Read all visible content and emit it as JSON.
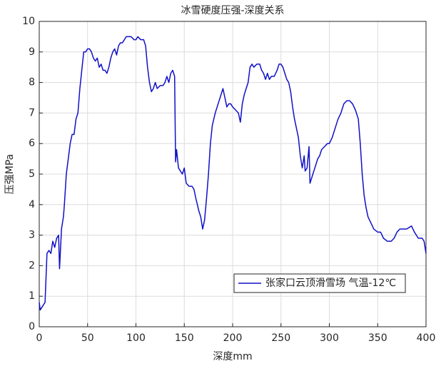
{
  "chart_data": {
    "type": "line",
    "title": "冰雪硬度压强-深度关系",
    "xlabel": "深度mm",
    "ylabel": "压强MPa",
    "x": [
      0,
      1,
      4,
      6,
      8,
      10,
      12,
      14,
      16,
      18,
      20,
      21,
      23,
      25,
      26,
      28,
      30,
      32,
      34,
      36,
      38,
      40,
      42,
      44,
      46,
      48,
      50,
      52,
      54,
      56,
      58,
      60,
      62,
      64,
      66,
      68,
      70,
      72,
      74,
      76,
      78,
      80,
      82,
      84,
      86,
      88,
      90,
      92,
      95,
      98,
      100,
      102,
      105,
      108,
      110,
      112,
      114,
      116,
      118,
      120,
      122,
      125,
      128,
      130,
      132,
      134,
      136,
      138,
      140,
      141,
      142,
      144,
      146,
      148,
      150,
      152,
      155,
      158,
      160,
      162,
      165,
      167,
      169,
      171,
      173,
      175,
      177,
      179,
      182,
      185,
      188,
      190,
      192,
      194,
      196,
      198,
      200,
      203,
      206,
      208,
      210,
      212,
      214,
      216,
      218,
      220,
      222,
      225,
      228,
      230,
      232,
      234,
      236,
      238,
      240,
      243,
      246,
      248,
      250,
      252,
      254,
      256,
      258,
      260,
      262,
      264,
      266,
      268,
      270,
      272,
      274,
      275,
      277,
      279,
      280,
      282,
      285,
      288,
      290,
      292,
      295,
      298,
      300,
      303,
      306,
      309,
      312,
      315,
      318,
      321,
      324,
      327,
      330,
      332,
      334,
      336,
      338,
      340,
      343,
      346,
      350,
      353,
      356,
      360,
      364,
      367,
      370,
      373,
      376,
      380,
      385,
      388,
      392,
      396,
      398,
      400
    ],
    "series": [
      {
        "name": "张家口云顶滑雪场 气温-12℃",
        "color": "#1010c8",
        "values": [
          0.8,
          0.55,
          0.7,
          0.8,
          2.4,
          2.5,
          2.4,
          2.8,
          2.6,
          2.9,
          3.0,
          1.9,
          3.2,
          3.6,
          4.0,
          5.0,
          5.5,
          6.0,
          6.3,
          6.3,
          6.8,
          7.0,
          7.8,
          8.4,
          9.0,
          9.0,
          9.1,
          9.1,
          9.0,
          8.8,
          8.7,
          8.8,
          8.5,
          8.6,
          8.4,
          8.4,
          8.3,
          8.5,
          8.8,
          9.0,
          9.1,
          8.9,
          9.2,
          9.3,
          9.3,
          9.4,
          9.5,
          9.5,
          9.5,
          9.4,
          9.4,
          9.5,
          9.4,
          9.4,
          9.2,
          8.5,
          8.0,
          7.7,
          7.8,
          8.0,
          7.8,
          7.9,
          7.9,
          8.0,
          8.2,
          8.0,
          8.3,
          8.4,
          8.2,
          5.4,
          5.8,
          5.2,
          5.1,
          5.0,
          5.2,
          4.7,
          4.6,
          4.6,
          4.5,
          4.2,
          3.8,
          3.6,
          3.2,
          3.5,
          4.2,
          5.0,
          6.0,
          6.6,
          7.0,
          7.3,
          7.6,
          7.8,
          7.5,
          7.2,
          7.3,
          7.3,
          7.2,
          7.1,
          7.0,
          6.7,
          7.3,
          7.6,
          7.8,
          8.0,
          8.5,
          8.6,
          8.5,
          8.6,
          8.6,
          8.4,
          8.3,
          8.1,
          8.3,
          8.1,
          8.2,
          8.2,
          8.4,
          8.6,
          8.6,
          8.5,
          8.3,
          8.1,
          8.0,
          7.7,
          7.2,
          6.8,
          6.5,
          6.2,
          5.6,
          5.2,
          5.6,
          5.1,
          5.2,
          5.9,
          4.7,
          4.9,
          5.2,
          5.5,
          5.6,
          5.8,
          5.9,
          6.0,
          6.0,
          6.2,
          6.5,
          6.8,
          7.0,
          7.3,
          7.4,
          7.4,
          7.3,
          7.1,
          6.8,
          6.0,
          5.0,
          4.3,
          3.9,
          3.6,
          3.4,
          3.2,
          3.1,
          3.1,
          2.9,
          2.8,
          2.8,
          2.9,
          3.1,
          3.2,
          3.2,
          3.2,
          3.3,
          3.1,
          2.9,
          2.9,
          2.8,
          2.4
        ]
      }
    ],
    "xlim": [
      0,
      400
    ],
    "xticks": [
      0,
      50,
      100,
      150,
      200,
      250,
      300,
      350,
      400
    ],
    "ylim": [
      0,
      10
    ],
    "yticks": [
      0,
      1,
      2,
      3,
      4,
      5,
      6,
      7,
      8,
      9,
      10
    ],
    "grid": true,
    "legend": "southeast"
  }
}
